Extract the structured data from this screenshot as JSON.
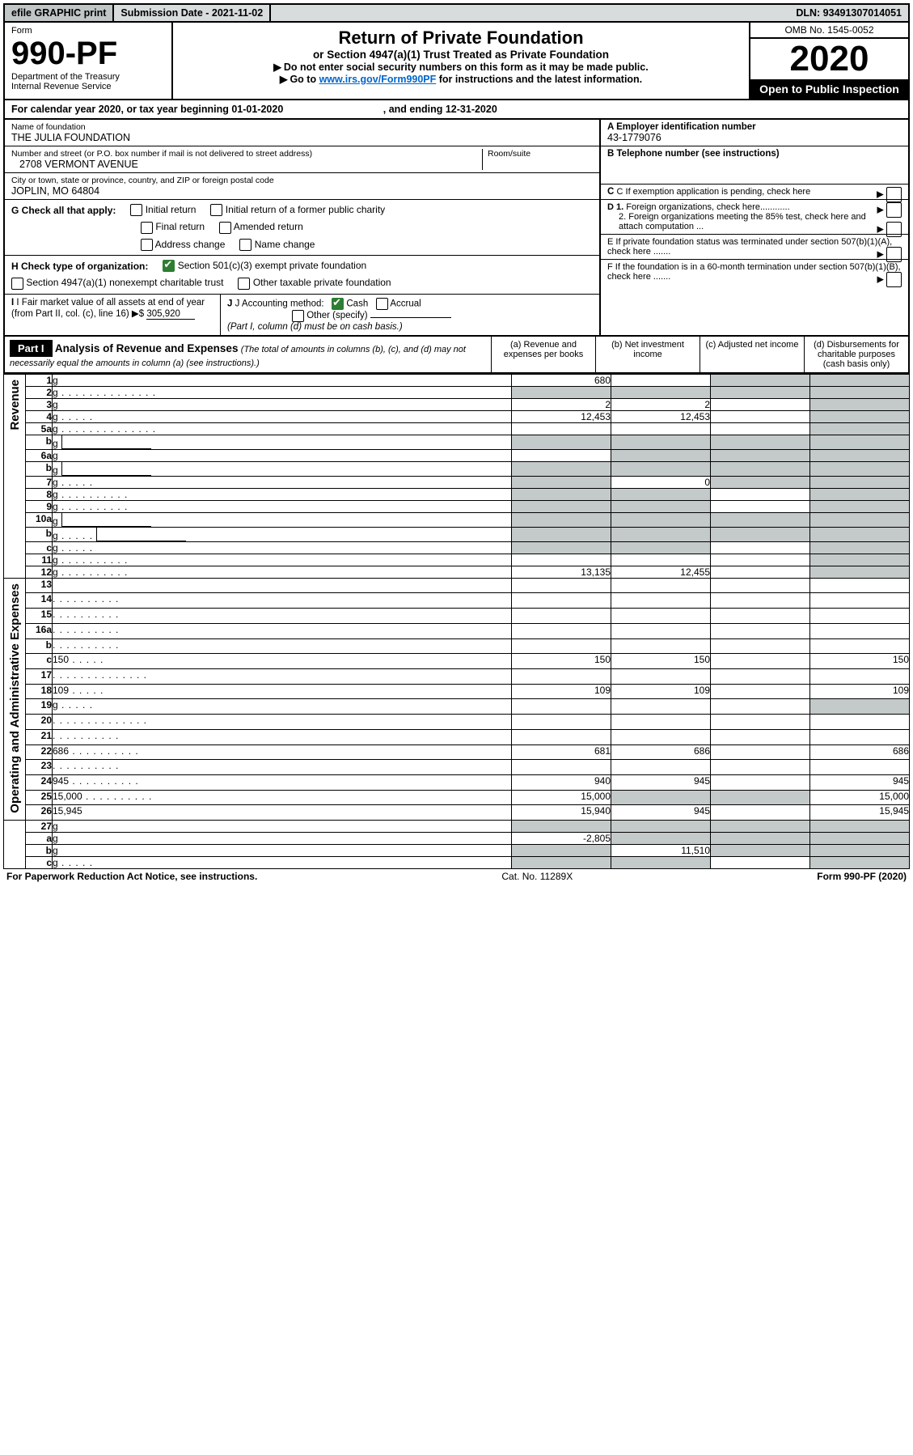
{
  "topbar": {
    "efile": "efile GRAPHIC print",
    "submission": "Submission Date - 2021-11-02",
    "dln": "DLN: 93491307014051"
  },
  "header": {
    "form_label": "Form",
    "form_no": "990-PF",
    "dept": "Department of the Treasury",
    "irs": "Internal Revenue Service",
    "title": "Return of Private Foundation",
    "subtitle": "or Section 4947(a)(1) Trust Treated as Private Foundation",
    "instruct1": "Do not enter social security numbers on this form as it may be made public.",
    "instruct2_pre": "Go to ",
    "instruct2_link": "www.irs.gov/Form990PF",
    "instruct2_post": " for instructions and the latest information.",
    "omb": "OMB No. 1545-0052",
    "year": "2020",
    "open": "Open to Public Inspection"
  },
  "calyear": {
    "text": "For calendar year 2020, or tax year beginning 01-01-2020",
    "ending": ", and ending 12-31-2020"
  },
  "nameaddr": {
    "name_lbl": "Name of foundation",
    "name": "THE JULIA FOUNDATION",
    "street_lbl": "Number and street (or P.O. box number if mail is not delivered to street address)",
    "room_lbl": "Room/suite",
    "street": "2708 VERMONT AVENUE",
    "city_lbl": "City or town, state or province, country, and ZIP or foreign postal code",
    "city": "JOPLIN, MO  64804"
  },
  "rightinfo": {
    "a_lbl": "A Employer identification number",
    "a_val": "43-1779076",
    "b_lbl": "B Telephone number (see instructions)",
    "c_lbl": "C If exemption application is pending, check here",
    "d1_lbl": "D 1. Foreign organizations, check here",
    "d2_lbl": "2. Foreign organizations meeting the 85% test, check here and attach computation ...",
    "e_lbl": "E  If private foundation status was terminated under section 507(b)(1)(A), check here .......",
    "f_lbl": "F  If the foundation is in a 60-month termination under section 507(b)(1)(B), check here ......."
  },
  "checks": {
    "g_lbl": "G Check all that apply:",
    "initial": "Initial return",
    "initial_former": "Initial return of a former public charity",
    "final": "Final return",
    "amended": "Amended return",
    "address": "Address change",
    "name": "Name change",
    "h_lbl": "H Check type of organization:",
    "h1": "Section 501(c)(3) exempt private foundation",
    "h2": "Section 4947(a)(1) nonexempt charitable trust",
    "h3": "Other taxable private foundation",
    "i_lbl": "I Fair market value of all assets at end of year (from Part II, col. (c), line 16)",
    "i_val": "305,920",
    "j_lbl": "J Accounting method:",
    "j_cash": "Cash",
    "j_accrual": "Accrual",
    "j_other": "Other (specify)",
    "j_note": "(Part I, column (d) must be on cash basis.)"
  },
  "part1": {
    "label": "Part I",
    "title": "Analysis of Revenue and Expenses",
    "title_note": " (The total of amounts in columns (b), (c), and (d) may not necessarily equal the amounts in column (a) (see instructions).)",
    "col_a": "(a)   Revenue and expenses per books",
    "col_b": "(b)   Net investment income",
    "col_c": "(c)   Adjusted net income",
    "col_d": "(d)   Disbursements for charitable purposes (cash basis only)"
  },
  "sidelabels": {
    "revenue": "Revenue",
    "expenses": "Operating and Administrative Expenses"
  },
  "rows": [
    {
      "n": "1",
      "d": "g",
      "a": "680",
      "b": "",
      "c": "g"
    },
    {
      "n": "2",
      "d": "g",
      "dots": "l",
      "a": "g",
      "b": "g",
      "c": "g"
    },
    {
      "n": "3",
      "d": "g",
      "a": "2",
      "b": "2",
      "c": ""
    },
    {
      "n": "4",
      "d": "g",
      "dots": "s",
      "a": "12,453",
      "b": "12,453",
      "c": ""
    },
    {
      "n": "5a",
      "d": "g",
      "dots": "l",
      "a": "",
      "b": "",
      "c": ""
    },
    {
      "n": "b",
      "d": "g",
      "inset": true,
      "a": "g",
      "b": "g",
      "c": "g"
    },
    {
      "n": "6a",
      "d": "g",
      "a": "",
      "b": "g",
      "c": "g"
    },
    {
      "n": "b",
      "d": "g",
      "inset": true,
      "a": "g",
      "b": "g",
      "c": "g"
    },
    {
      "n": "7",
      "d": "g",
      "dots": "s",
      "a": "g",
      "b": "0",
      "c": "g"
    },
    {
      "n": "8",
      "d": "g",
      "dots": "m",
      "a": "g",
      "b": "g",
      "c": ""
    },
    {
      "n": "9",
      "d": "g",
      "dots": "m",
      "a": "g",
      "b": "g",
      "c": ""
    },
    {
      "n": "10a",
      "d": "g",
      "inset": true,
      "a": "g",
      "b": "g",
      "c": "g"
    },
    {
      "n": "b",
      "d": "g",
      "dots": "s",
      "inset": true,
      "a": "g",
      "b": "g",
      "c": "g"
    },
    {
      "n": "c",
      "d": "g",
      "dots": "s",
      "a": "g",
      "b": "g",
      "c": ""
    },
    {
      "n": "11",
      "d": "g",
      "dots": "m",
      "a": "",
      "b": "",
      "c": ""
    },
    {
      "n": "12",
      "d": "g",
      "dots": "m",
      "a": "13,135",
      "b": "12,455",
      "c": ""
    }
  ],
  "rows2": [
    {
      "n": "13",
      "d": "",
      "a": "",
      "b": "",
      "c": ""
    },
    {
      "n": "14",
      "d": "",
      "dots": "m",
      "a": "",
      "b": "",
      "c": ""
    },
    {
      "n": "15",
      "d": "",
      "dots": "m",
      "a": "",
      "b": "",
      "c": ""
    },
    {
      "n": "16a",
      "d": "",
      "dots": "m",
      "a": "",
      "b": "",
      "c": ""
    },
    {
      "n": "b",
      "d": "",
      "dots": "m",
      "a": "",
      "b": "",
      "c": ""
    },
    {
      "n": "c",
      "d": "150",
      "dots": "s",
      "a": "150",
      "b": "150",
      "c": ""
    },
    {
      "n": "17",
      "d": "",
      "dots": "l",
      "a": "",
      "b": "",
      "c": ""
    },
    {
      "n": "18",
      "d": "109",
      "dots": "s",
      "a": "109",
      "b": "109",
      "c": ""
    },
    {
      "n": "19",
      "d": "g",
      "dots": "s",
      "a": "",
      "b": "",
      "c": ""
    },
    {
      "n": "20",
      "d": "",
      "dots": "l",
      "a": "",
      "b": "",
      "c": ""
    },
    {
      "n": "21",
      "d": "",
      "dots": "m",
      "a": "",
      "b": "",
      "c": ""
    },
    {
      "n": "22",
      "d": "686",
      "dots": "m",
      "a": "681",
      "b": "686",
      "c": ""
    },
    {
      "n": "23",
      "d": "",
      "dots": "m",
      "a": "",
      "b": "",
      "c": ""
    },
    {
      "n": "24",
      "d": "945",
      "dots": "m",
      "a": "940",
      "b": "945",
      "c": ""
    },
    {
      "n": "25",
      "d": "15,000",
      "dots": "m",
      "a": "15,000",
      "b": "g",
      "c": "g"
    },
    {
      "n": "26",
      "d": "15,945",
      "a": "15,940",
      "b": "945",
      "c": ""
    }
  ],
  "rows3": [
    {
      "n": "27",
      "d": "g",
      "a": "g",
      "b": "g",
      "c": "g"
    },
    {
      "n": "a",
      "d": "g",
      "a": "-2,805",
      "b": "g",
      "c": "g"
    },
    {
      "n": "b",
      "d": "g",
      "a": "g",
      "b": "11,510",
      "c": "g"
    },
    {
      "n": "c",
      "d": "g",
      "dots": "s",
      "a": "g",
      "b": "g",
      "c": ""
    }
  ],
  "footer": {
    "left": "For Paperwork Reduction Act Notice, see instructions.",
    "mid": "Cat. No. 11289X",
    "right": "Form 990-PF (2020)"
  }
}
